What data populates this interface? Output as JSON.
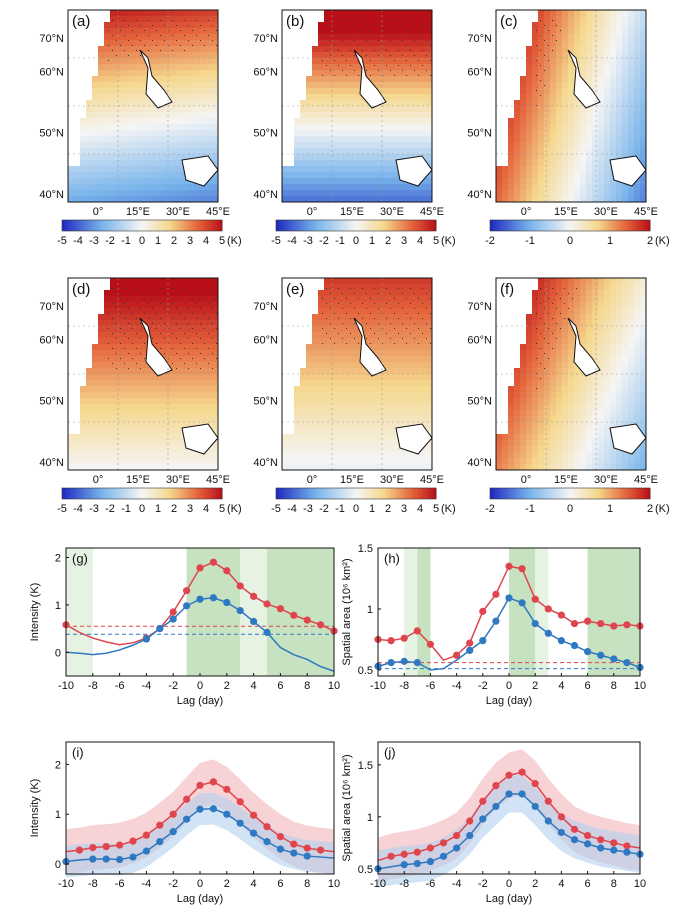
{
  "maps": {
    "lat_labels": [
      "70°N",
      "60°N",
      "50°N",
      "40°N"
    ],
    "lon_labels": [
      "0°",
      "15°E",
      "30°E",
      "45°E"
    ],
    "panels": [
      {
        "label": "(a)",
        "pattern": "dipole_weak",
        "colorbar": "K5"
      },
      {
        "label": "(b)",
        "pattern": "dipole_strong",
        "colorbar": "K5"
      },
      {
        "label": "(c)",
        "pattern": "diff_dipole",
        "colorbar": "K2"
      },
      {
        "label": "(d)",
        "pattern": "north_warm",
        "colorbar": "K5"
      },
      {
        "label": "(e)",
        "pattern": "north_warm_weak",
        "colorbar": "K5"
      },
      {
        "label": "(f)",
        "pattern": "diff_north",
        "colorbar": "K2"
      }
    ],
    "colorbars": {
      "K5": {
        "ticks": [
          "-5",
          "-4",
          "-3",
          "-2",
          "-1",
          "0",
          "1",
          "2",
          "3",
          "4",
          "5"
        ],
        "unit": "(K)"
      },
      "K2": {
        "ticks": [
          "-2",
          "-1",
          "0",
          "1",
          "2"
        ],
        "unit": "(K)"
      }
    },
    "colors": {
      "cold": "#2233cc",
      "neutral": "#f4f4f4",
      "warm": "#cc1f1f"
    }
  },
  "chart_data": [
    {
      "panel": "(g)",
      "type": "line",
      "xlabel": "Lag (day)",
      "ylabel": "Intensity (K)",
      "xlim": [
        -10,
        10
      ],
      "ylim": [
        -0.5,
        2.2
      ],
      "xticks": [
        "-10",
        "-8",
        "-6",
        "-4",
        "-2",
        "0",
        "2",
        "4",
        "6",
        "8",
        "10"
      ],
      "yticks": [
        "0",
        "1",
        "2"
      ],
      "shaded_x_ranges": [
        [
          -10,
          -8,
          "light"
        ],
        [
          -1,
          3,
          "dark"
        ],
        [
          3,
          5,
          "light"
        ],
        [
          5,
          10,
          "dark"
        ]
      ],
      "series": [
        {
          "color": "#e0454d",
          "x": [
            -10,
            -9,
            -8,
            -7,
            -6,
            -5,
            -4,
            -3,
            -2,
            -1,
            0,
            1,
            2,
            3,
            4,
            5,
            6,
            7,
            8,
            9,
            10
          ],
          "y": [
            0.58,
            0.42,
            0.3,
            0.22,
            0.16,
            0.2,
            0.3,
            0.5,
            0.85,
            1.3,
            1.78,
            1.9,
            1.72,
            1.4,
            1.18,
            1.02,
            0.92,
            0.78,
            0.68,
            0.58,
            0.45
          ],
          "markers_x": [
            -10,
            -4,
            -3,
            -2,
            -1,
            0,
            1,
            2,
            3,
            4,
            5,
            6,
            7,
            8,
            9,
            10
          ]
        },
        {
          "color": "#2f79c2",
          "x": [
            -10,
            -9,
            -8,
            -7,
            -6,
            -5,
            -4,
            -3,
            -2,
            -1,
            0,
            1,
            2,
            3,
            4,
            5,
            6,
            7,
            8,
            9,
            10
          ],
          "y": [
            0.0,
            -0.02,
            -0.05,
            -0.02,
            0.05,
            0.15,
            0.28,
            0.5,
            0.7,
            0.98,
            1.12,
            1.15,
            1.05,
            0.88,
            0.65,
            0.42,
            0.1,
            -0.05,
            -0.15,
            -0.3,
            -0.4
          ],
          "markers_x": [
            -4,
            -3,
            -2,
            -1,
            0,
            1,
            2,
            3,
            4,
            5
          ]
        }
      ],
      "thresholds": [
        {
          "y": 0.55,
          "color": "#e0454d"
        },
        {
          "y": 0.38,
          "color": "#2f79c2"
        }
      ]
    },
    {
      "panel": "(h)",
      "type": "line",
      "xlabel": "Lag (day)",
      "ylabel": "Spatial area (10⁶ km²)",
      "xlim": [
        -10,
        10
      ],
      "ylim": [
        0.45,
        1.5
      ],
      "xticks": [
        "-10",
        "-8",
        "-6",
        "-4",
        "-2",
        "0",
        "2",
        "4",
        "6",
        "8",
        "10"
      ],
      "yticks": [
        "0.5",
        "1",
        "1.5"
      ],
      "shaded_x_ranges": [
        [
          -8,
          -7,
          "light"
        ],
        [
          -7,
          -6,
          "dark"
        ],
        [
          0,
          2,
          "dark"
        ],
        [
          2,
          3,
          "light"
        ],
        [
          6,
          10,
          "dark"
        ]
      ],
      "series": [
        {
          "color": "#e0454d",
          "x": [
            -10,
            -9,
            -8,
            -7,
            -6,
            -5,
            -4,
            -3,
            -2,
            -1,
            0,
            1,
            2,
            3,
            4,
            5,
            6,
            7,
            8,
            9,
            10
          ],
          "y": [
            0.75,
            0.74,
            0.76,
            0.82,
            0.71,
            0.58,
            0.62,
            0.72,
            0.98,
            1.12,
            1.35,
            1.33,
            1.08,
            1.0,
            0.95,
            0.88,
            0.9,
            0.88,
            0.86,
            0.87,
            0.86
          ],
          "markers_x": [
            -10,
            -9,
            -8,
            -7,
            -6,
            -4,
            -3,
            -2,
            -1,
            0,
            1,
            2,
            3,
            4,
            5,
            6,
            7,
            8,
            9,
            10
          ]
        },
        {
          "color": "#2f79c2",
          "x": [
            -10,
            -9,
            -8,
            -7,
            -6,
            -5,
            -4,
            -3,
            -2,
            -1,
            0,
            1,
            2,
            3,
            4,
            5,
            6,
            7,
            8,
            9,
            10
          ],
          "y": [
            0.53,
            0.56,
            0.57,
            0.56,
            0.5,
            0.51,
            0.58,
            0.66,
            0.74,
            0.9,
            1.09,
            1.05,
            0.88,
            0.8,
            0.74,
            0.7,
            0.65,
            0.62,
            0.59,
            0.56,
            0.52
          ],
          "markers_x": [
            -10,
            -9,
            -8,
            -7,
            -3,
            -2,
            -1,
            0,
            1,
            2,
            3,
            4,
            5,
            6,
            7,
            8,
            9,
            10
          ]
        }
      ],
      "thresholds": [
        {
          "y": 0.56,
          "color": "#e0454d"
        },
        {
          "y": 0.51,
          "color": "#2f79c2"
        }
      ]
    },
    {
      "panel": "(i)",
      "type": "line",
      "xlabel": "Lag (day)",
      "ylabel": "Intensity (K)",
      "xlim": [
        -10,
        10
      ],
      "ylim": [
        -0.2,
        2.45
      ],
      "xticks": [
        "-10",
        "-8",
        "-6",
        "-4",
        "-2",
        "0",
        "2",
        "4",
        "6",
        "8",
        "10"
      ],
      "yticks": [
        "0",
        "1",
        "2"
      ],
      "series": [
        {
          "color": "#e0454d",
          "x": [
            -10,
            -9,
            -8,
            -7,
            -6,
            -5,
            -4,
            -3,
            -2,
            -1,
            0,
            1,
            2,
            3,
            4,
            5,
            6,
            7,
            8,
            9,
            10
          ],
          "y": [
            0.25,
            0.28,
            0.33,
            0.35,
            0.38,
            0.46,
            0.58,
            0.78,
            1.0,
            1.3,
            1.58,
            1.65,
            1.5,
            1.25,
            0.98,
            0.75,
            0.55,
            0.4,
            0.32,
            0.28,
            0.25
          ],
          "band": 0.45,
          "band_color": "#f2b5bb",
          "markers_x": [
            -9,
            -8,
            -7,
            -6,
            -5,
            -4,
            -3,
            -2,
            -1,
            0,
            1,
            2,
            3,
            4,
            5,
            6,
            7,
            8,
            9
          ]
        },
        {
          "color": "#2f79c2",
          "x": [
            -10,
            -9,
            -8,
            -7,
            -6,
            -5,
            -4,
            -3,
            -2,
            -1,
            0,
            1,
            2,
            3,
            4,
            5,
            6,
            7,
            8,
            9,
            10
          ],
          "y": [
            0.05,
            0.08,
            0.1,
            0.1,
            0.09,
            0.14,
            0.26,
            0.45,
            0.65,
            0.9,
            1.1,
            1.11,
            1.0,
            0.82,
            0.62,
            0.45,
            0.3,
            0.22,
            0.16,
            0.14,
            0.12
          ],
          "band": 0.32,
          "band_color": "#b3d0ec",
          "markers_x": [
            -10,
            -8,
            -7,
            -6,
            -5,
            -4,
            -3,
            -2,
            -1,
            0,
            1,
            2,
            3,
            4,
            5,
            6,
            7,
            8
          ]
        }
      ]
    },
    {
      "panel": "(j)",
      "type": "line",
      "xlabel": "Lag (day)",
      "ylabel": "Spatial area (10⁶ km²)",
      "xlim": [
        -10,
        10
      ],
      "ylim": [
        0.45,
        1.72
      ],
      "xticks": [
        "-10",
        "-8",
        "-6",
        "-4",
        "-2",
        "0",
        "2",
        "4",
        "6",
        "8",
        "10"
      ],
      "yticks": [
        "0.5",
        "1",
        "1.5"
      ],
      "series": [
        {
          "color": "#e0454d",
          "x": [
            -10,
            -9,
            -8,
            -7,
            -6,
            -5,
            -4,
            -3,
            -2,
            -1,
            0,
            1,
            2,
            3,
            4,
            5,
            6,
            7,
            8,
            9,
            10
          ],
          "y": [
            0.58,
            0.62,
            0.64,
            0.66,
            0.7,
            0.75,
            0.82,
            0.96,
            1.15,
            1.3,
            1.4,
            1.43,
            1.32,
            1.15,
            1.0,
            0.88,
            0.82,
            0.78,
            0.75,
            0.72,
            0.7
          ],
          "band": 0.22,
          "band_color": "#f2b5bb",
          "markers_x": [
            -9,
            -8,
            -7,
            -6,
            -5,
            -4,
            -3,
            -2,
            -1,
            0,
            1,
            2,
            3,
            4,
            5,
            6,
            7,
            8,
            9
          ]
        },
        {
          "color": "#2f79c2",
          "x": [
            -10,
            -9,
            -8,
            -7,
            -6,
            -5,
            -4,
            -3,
            -2,
            -1,
            0,
            1,
            2,
            3,
            4,
            5,
            6,
            7,
            8,
            9,
            10
          ],
          "y": [
            0.5,
            0.52,
            0.54,
            0.55,
            0.57,
            0.62,
            0.7,
            0.82,
            0.98,
            1.1,
            1.22,
            1.22,
            1.1,
            0.96,
            0.85,
            0.78,
            0.74,
            0.7,
            0.68,
            0.66,
            0.64
          ],
          "band": 0.18,
          "band_color": "#b3d0ec",
          "markers_x": [
            -10,
            -8,
            -7,
            -6,
            -5,
            -4,
            -3,
            -2,
            -1,
            0,
            1,
            2,
            3,
            4,
            5,
            6,
            7,
            8,
            9,
            10
          ]
        }
      ]
    }
  ]
}
